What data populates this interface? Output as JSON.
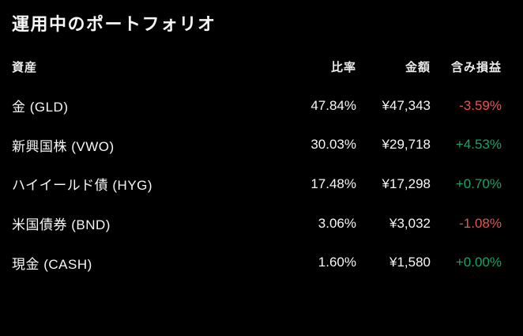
{
  "page": {
    "background": "#000000"
  },
  "title": "運用中のポートフォリオ",
  "table": {
    "headers": {
      "asset": "資産",
      "ratio": "比率",
      "amount": "金額",
      "pnl": "含み損益"
    },
    "rows": [
      {
        "asset": "金 (GLD)",
        "ratio": "47.84%",
        "amount": "¥47,343",
        "pnl": "-3.59%",
        "pnl_direction": "negative"
      },
      {
        "asset": "新興国株 (VWO)",
        "ratio": "30.03%",
        "amount": "¥29,718",
        "pnl": "+4.53%",
        "pnl_direction": "positive"
      },
      {
        "asset": "ハイイールド債 (HYG)",
        "ratio": "17.48%",
        "amount": "¥17,298",
        "pnl": "+0.70%",
        "pnl_direction": "positive"
      },
      {
        "asset": "米国債券 (BND)",
        "ratio": "3.06%",
        "amount": "¥3,032",
        "pnl": "-1.08%",
        "pnl_direction": "negative"
      },
      {
        "asset": "現金 (CASH)",
        "ratio": "1.60%",
        "amount": "¥1,580",
        "pnl": "+0.00%",
        "pnl_direction": "positive"
      }
    ]
  },
  "colors": {
    "positive": "#1aa367",
    "negative": "#e25550",
    "text": "#f7f7f7",
    "header_text": "#e9e9e9",
    "background": "#000000"
  }
}
